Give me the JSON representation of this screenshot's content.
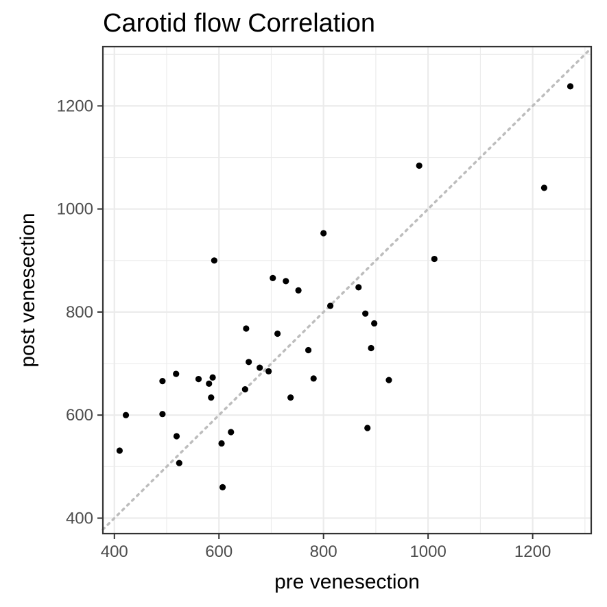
{
  "chart_data": {
    "type": "scatter",
    "title": "Carotid flow   Correlation",
    "xlabel": "pre venesection",
    "ylabel": "post venesection",
    "xlim": [
      378,
      1312
    ],
    "ylim": [
      370,
      1315
    ],
    "x_ticks": [
      400,
      600,
      800,
      1000,
      1200
    ],
    "y_ticks": [
      400,
      600,
      800,
      1000,
      1200
    ],
    "x_tick_labels": [
      "400",
      "600",
      "800",
      "1000",
      "1200"
    ],
    "y_tick_labels": [
      "400",
      "600",
      "800",
      "1000",
      "1200"
    ],
    "grid": true,
    "reference_line": {
      "slope": 1,
      "intercept": 0,
      "style": "dotted",
      "color": "#bdbdbd"
    },
    "point_color": "#000000",
    "points": [
      {
        "x": 410,
        "y": 531
      },
      {
        "x": 422,
        "y": 600
      },
      {
        "x": 492,
        "y": 666
      },
      {
        "x": 492,
        "y": 602
      },
      {
        "x": 518,
        "y": 680
      },
      {
        "x": 519,
        "y": 559
      },
      {
        "x": 524,
        "y": 507
      },
      {
        "x": 561,
        "y": 670
      },
      {
        "x": 581,
        "y": 661
      },
      {
        "x": 585,
        "y": 634
      },
      {
        "x": 588,
        "y": 673
      },
      {
        "x": 591,
        "y": 900
      },
      {
        "x": 605,
        "y": 545
      },
      {
        "x": 607,
        "y": 460
      },
      {
        "x": 623,
        "y": 567
      },
      {
        "x": 650,
        "y": 650
      },
      {
        "x": 652,
        "y": 768
      },
      {
        "x": 657,
        "y": 703
      },
      {
        "x": 678,
        "y": 692
      },
      {
        "x": 695,
        "y": 685
      },
      {
        "x": 703,
        "y": 866
      },
      {
        "x": 712,
        "y": 758
      },
      {
        "x": 728,
        "y": 860
      },
      {
        "x": 737,
        "y": 634
      },
      {
        "x": 752,
        "y": 842
      },
      {
        "x": 771,
        "y": 726
      },
      {
        "x": 781,
        "y": 671
      },
      {
        "x": 800,
        "y": 953
      },
      {
        "x": 813,
        "y": 812
      },
      {
        "x": 867,
        "y": 848
      },
      {
        "x": 880,
        "y": 797
      },
      {
        "x": 884,
        "y": 575
      },
      {
        "x": 891,
        "y": 730
      },
      {
        "x": 897,
        "y": 778
      },
      {
        "x": 925,
        "y": 668
      },
      {
        "x": 983,
        "y": 1084
      },
      {
        "x": 1012,
        "y": 903
      },
      {
        "x": 1222,
        "y": 1041
      },
      {
        "x": 1272,
        "y": 1238
      }
    ]
  }
}
